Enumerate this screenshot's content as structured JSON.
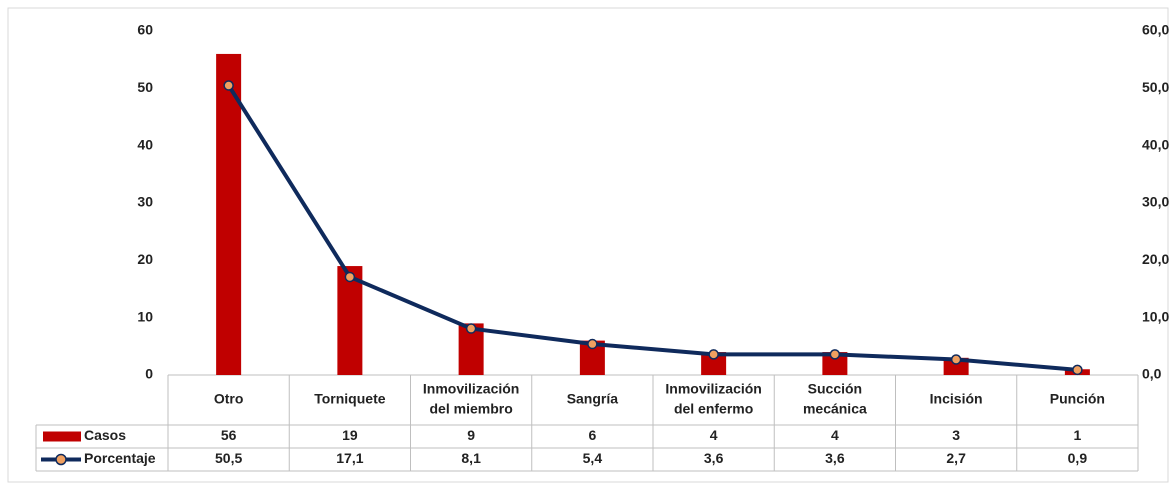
{
  "chart_data": {
    "type": "bar",
    "categories": [
      "Otro",
      "Torniquete",
      "Inmovilización del miembro",
      "Sangría",
      "Inmovilización del enfermo",
      "Succión mecánica",
      "Incisión",
      "Punción"
    ],
    "category_lines": [
      [
        "Otro"
      ],
      [
        "Torniquete"
      ],
      [
        "Inmovilización",
        "del miembro"
      ],
      [
        "Sangría"
      ],
      [
        "Inmovilización",
        "del enfermo"
      ],
      [
        "Succión",
        "mecánica"
      ],
      [
        "Incisión"
      ],
      [
        "Punción"
      ]
    ],
    "series": [
      {
        "name": "Casos",
        "type": "bar",
        "axis": "left",
        "color": "#C00000",
        "values": [
          56,
          19,
          9,
          6,
          4,
          4,
          3,
          1
        ],
        "labels": [
          "56",
          "19",
          "9",
          "6",
          "4",
          "4",
          "3",
          "1"
        ]
      },
      {
        "name": "Porcentaje",
        "type": "line",
        "axis": "right",
        "color": "#0F2A5C",
        "marker_color": "#F0A060",
        "values": [
          50.5,
          17.1,
          8.1,
          5.4,
          3.6,
          3.6,
          2.7,
          0.9
        ],
        "labels": [
          "50,5",
          "17,1",
          "8,1",
          "5,4",
          "3,6",
          "3,6",
          "2,7",
          "0,9"
        ]
      }
    ],
    "ylim": [
      0,
      60
    ],
    "y_ticks": [
      "0",
      "10",
      "20",
      "30",
      "40",
      "50",
      "60"
    ],
    "y2lim": [
      0,
      60
    ],
    "y2_ticks": [
      "0,0",
      "10,0",
      "20,0",
      "30,0",
      "40,0",
      "50,0",
      "60,0"
    ],
    "grid": false,
    "legend": "data-table"
  }
}
